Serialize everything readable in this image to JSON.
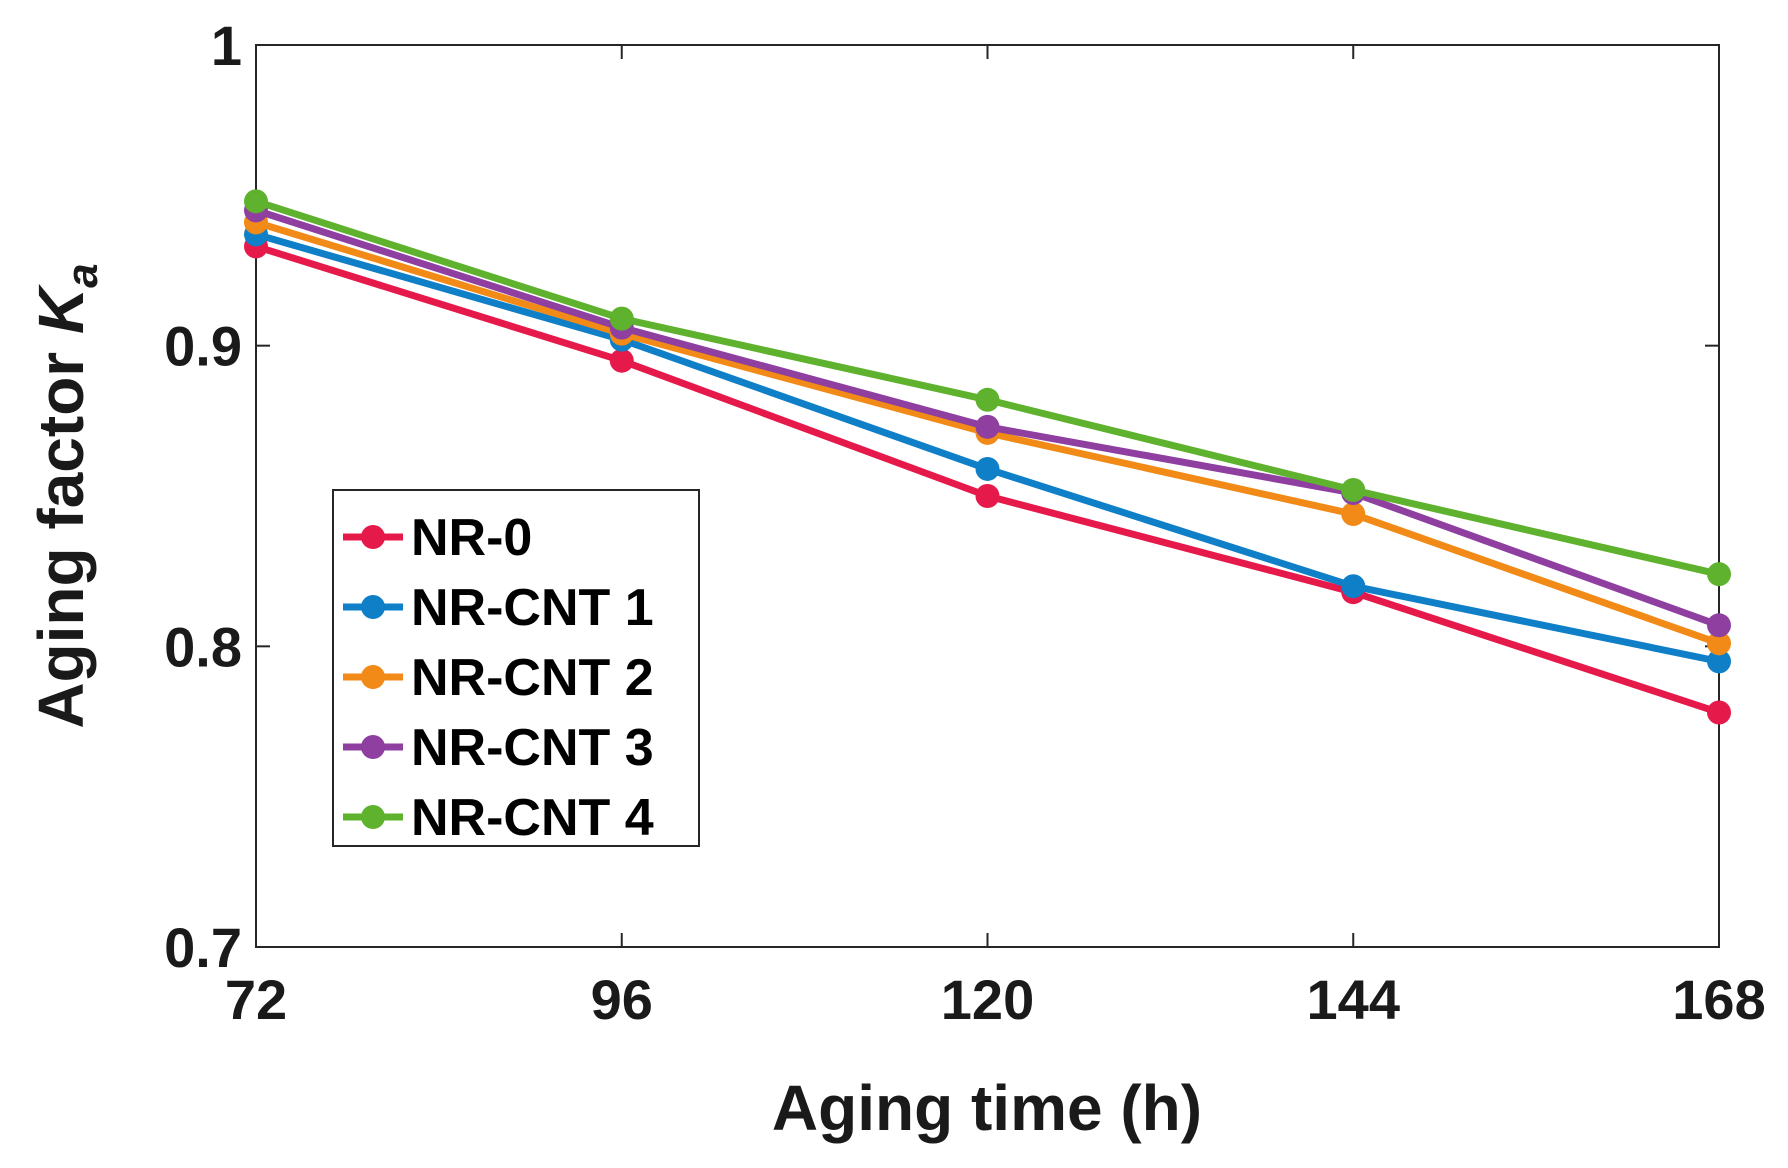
{
  "chart_data": {
    "type": "line",
    "xlabel": "Aging time (h)",
    "ylabel": {
      "text": "Aging factor ",
      "var": "K",
      "sub": "a"
    },
    "x": [
      72,
      96,
      120,
      144,
      168
    ],
    "x_tick_labels": [
      "72",
      "96",
      "120",
      "144",
      "168"
    ],
    "xlim": [
      72,
      168
    ],
    "ylim": [
      0.7,
      1.0
    ],
    "y_ticks": [
      0.7,
      0.8,
      0.9,
      1.0
    ],
    "y_tick_labels": [
      "0.7",
      "0.8",
      "0.9",
      "1"
    ],
    "grid": false,
    "legend_position": "middle-left",
    "series": [
      {
        "name": "NR-0",
        "color": "#e6194b",
        "values": [
          0.933,
          0.895,
          0.85,
          0.818,
          0.778
        ]
      },
      {
        "name": "NR-CNT 1",
        "color": "#0f7fc8",
        "values": [
          0.937,
          0.902,
          0.859,
          0.82,
          0.795
        ]
      },
      {
        "name": "NR-CNT 2",
        "color": "#f28a17",
        "values": [
          0.941,
          0.904,
          0.871,
          0.844,
          0.801
        ]
      },
      {
        "name": "NR-CNT 3",
        "color": "#8e3fa0",
        "values": [
          0.945,
          0.906,
          0.873,
          0.851,
          0.807
        ]
      },
      {
        "name": "NR-CNT 4",
        "color": "#5eb22e",
        "values": [
          0.948,
          0.909,
          0.882,
          0.852,
          0.824
        ]
      }
    ]
  }
}
